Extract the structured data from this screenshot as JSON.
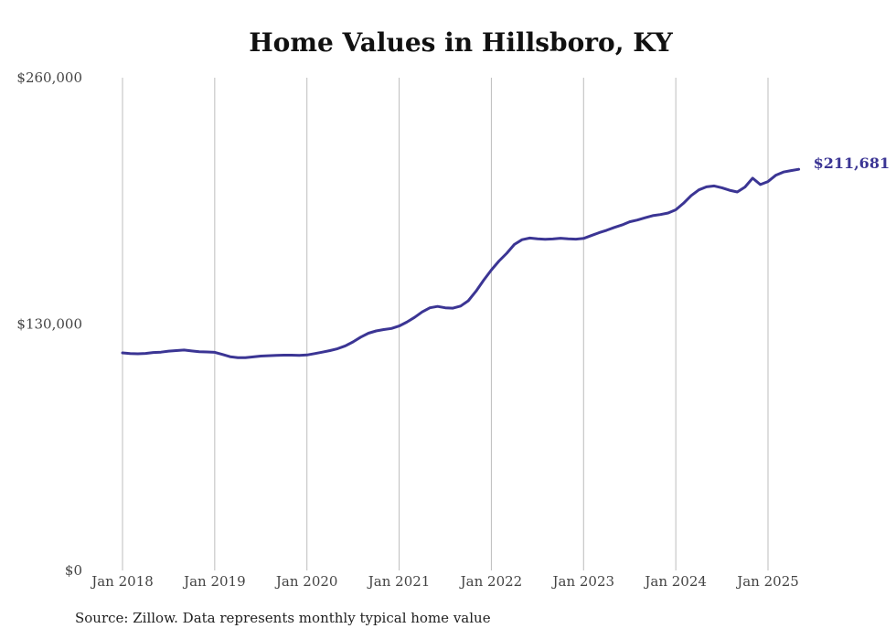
{
  "title": "Home Values in Hillsboro, KY",
  "source": "Source: Zillow. Data represents monthly typical home value",
  "colors": {
    "line": "#3b3594",
    "grid": "#bdbdbd",
    "text": "#444444"
  },
  "chart_data": {
    "type": "line",
    "title": "Home Values in Hillsboro, KY",
    "xlabel": "",
    "ylabel": "",
    "ylim": [
      0,
      260000
    ],
    "y_ticks": [
      {
        "value": 0,
        "label": "$0"
      },
      {
        "value": 130000,
        "label": "$130,000"
      },
      {
        "value": 260000,
        "label": "$260,000"
      }
    ],
    "x_ticks": [
      {
        "value": 2018.0,
        "label": "Jan 2018"
      },
      {
        "value": 2019.0,
        "label": "Jan 2019"
      },
      {
        "value": 2020.0,
        "label": "Jan 2020"
      },
      {
        "value": 2021.0,
        "label": "Jan 2021"
      },
      {
        "value": 2022.0,
        "label": "Jan 2022"
      },
      {
        "value": 2023.0,
        "label": "Jan 2023"
      },
      {
        "value": 2024.0,
        "label": "Jan 2024"
      },
      {
        "value": 2025.0,
        "label": "Jan 2025"
      }
    ],
    "xlim": [
      2018.0,
      2025.333
    ],
    "grid": "vertical",
    "end_label": "$211,681",
    "series": [
      {
        "x": [
          2018.0,
          2018.083,
          2018.167,
          2018.25,
          2018.333,
          2018.417,
          2018.5,
          2018.583,
          2018.667,
          2018.75,
          2018.833,
          2018.917,
          2019.0,
          2019.083,
          2019.167,
          2019.25,
          2019.333,
          2019.417,
          2019.5,
          2019.583,
          2019.667,
          2019.75,
          2019.833,
          2019.917,
          2020.0,
          2020.083,
          2020.167,
          2020.25,
          2020.333,
          2020.417,
          2020.5,
          2020.583,
          2020.667,
          2020.75,
          2020.833,
          2020.917,
          2021.0,
          2021.083,
          2021.167,
          2021.25,
          2021.333,
          2021.417,
          2021.5,
          2021.583,
          2021.667,
          2021.75,
          2021.833,
          2021.917,
          2022.0,
          2022.083,
          2022.167,
          2022.25,
          2022.333,
          2022.417,
          2022.5,
          2022.583,
          2022.667,
          2022.75,
          2022.833,
          2022.917,
          2023.0,
          2023.083,
          2023.167,
          2023.25,
          2023.333,
          2023.417,
          2023.5,
          2023.583,
          2023.667,
          2023.75,
          2023.833,
          2023.917,
          2024.0,
          2024.083,
          2024.167,
          2024.25,
          2024.333,
          2024.417,
          2024.5,
          2024.583,
          2024.667,
          2024.75,
          2024.833,
          2024.917,
          2025.0,
          2025.083,
          2025.167,
          2025.25,
          2025.333
        ],
        "values": [
          114800,
          114400,
          114300,
          114500,
          115000,
          115200,
          115700,
          116000,
          116300,
          115800,
          115400,
          115300,
          115100,
          114000,
          112800,
          112300,
          112300,
          112700,
          113100,
          113300,
          113500,
          113600,
          113600,
          113500,
          113700,
          114400,
          115200,
          116000,
          117000,
          118500,
          120600,
          123100,
          125200,
          126400,
          127100,
          127700,
          129000,
          131000,
          133500,
          136400,
          138600,
          139300,
          138600,
          138400,
          139500,
          142300,
          147300,
          153200,
          158500,
          163300,
          167400,
          172000,
          174500,
          175400,
          175000,
          174700,
          174900,
          175300,
          175000,
          174800,
          175200,
          176700,
          178200,
          179500,
          181000,
          182300,
          184000,
          184900,
          186100,
          187200,
          187800,
          188600,
          190300,
          193700,
          197800,
          200800,
          202400,
          202900,
          201900,
          200600,
          199700,
          202300,
          207000,
          203600,
          205200,
          208500,
          210200,
          211000,
          211681
        ]
      }
    ]
  }
}
